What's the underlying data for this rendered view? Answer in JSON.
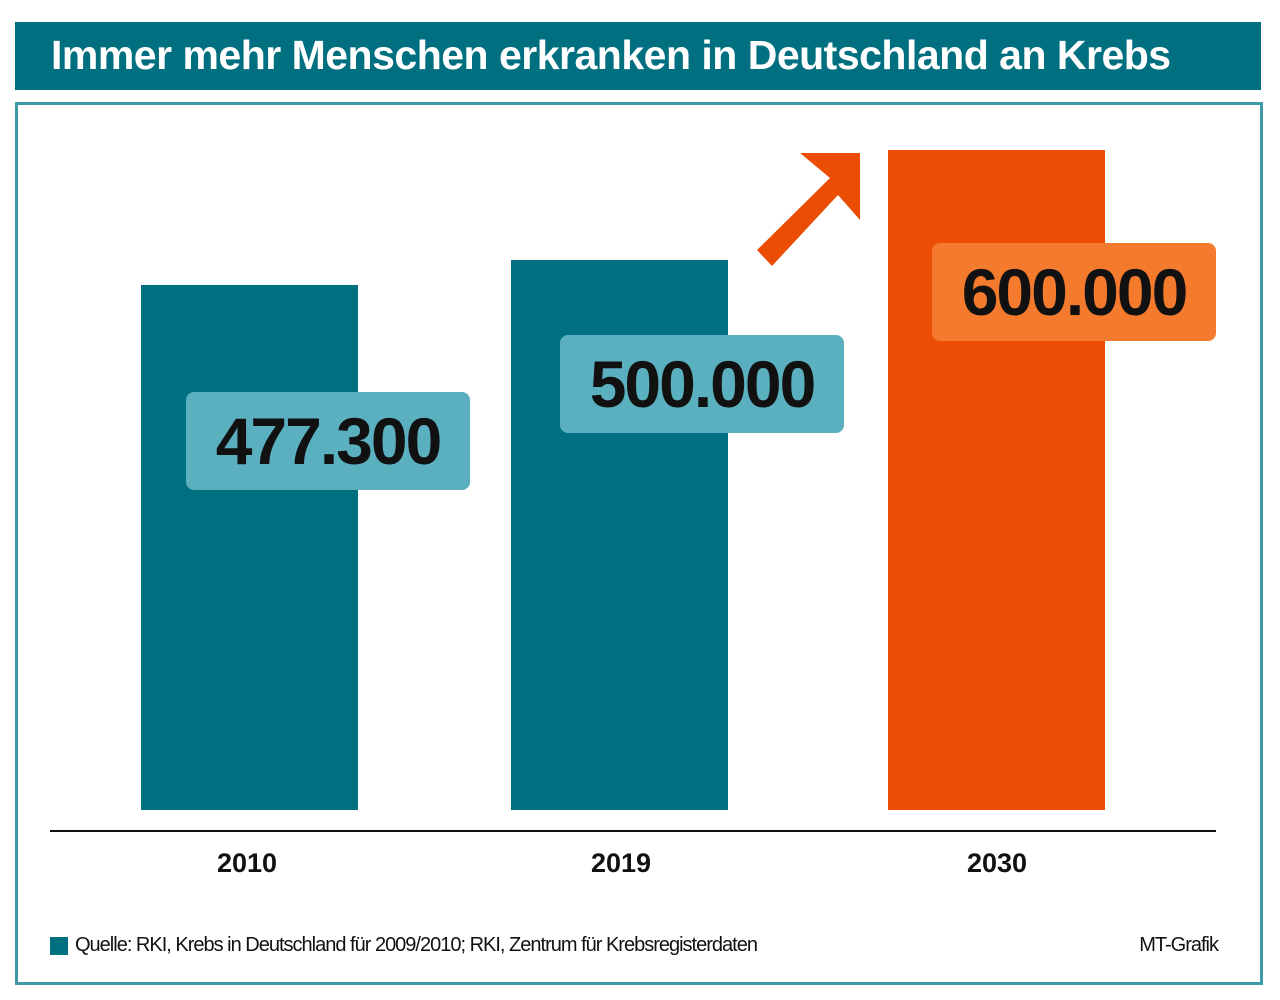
{
  "chart_data": {
    "type": "bar",
    "title": "Immer mehr Menschen erkranken in Deutschland an Krebs",
    "categories": [
      "2010",
      "2019",
      "2030"
    ],
    "values": [
      477300,
      500000,
      600000
    ],
    "data_labels": [
      "477.300",
      "500.000",
      "600.000"
    ],
    "bar_colors": [
      "#006f80",
      "#006f80",
      "#ec4d05"
    ],
    "label_colors": [
      "#5ab0bf",
      "#5ab0bf",
      "#f47a2e"
    ],
    "arrow": "up-right-arrow",
    "grid": false,
    "source": "Quelle: RKI, Krebs in Deutschland für 2009/2010; RKI, Zentrum für Krebsregisterdaten",
    "credit": "MT-Grafik"
  }
}
